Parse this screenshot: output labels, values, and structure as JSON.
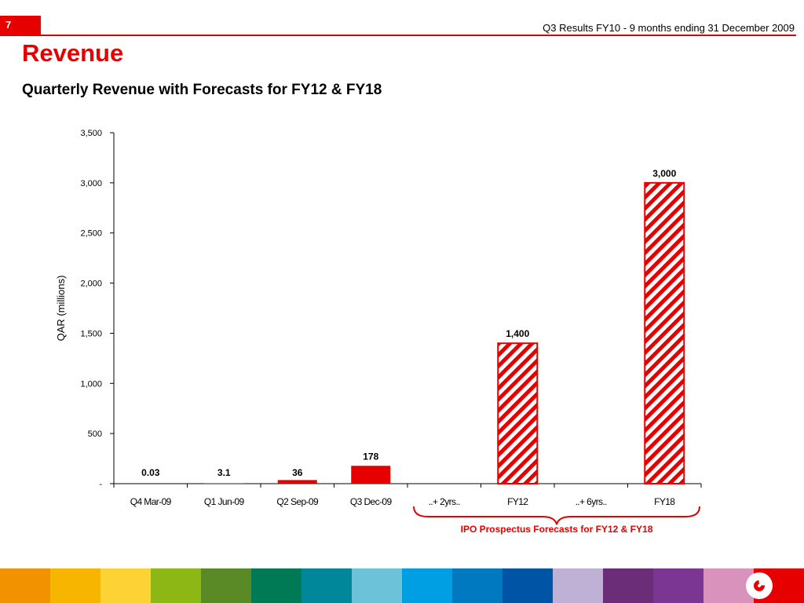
{
  "header": {
    "slide_number": "7",
    "report_title": "Q3 Results FY10 - 9 months ending 31 December 2009"
  },
  "title": "Revenue",
  "subtitle": "Quarterly Revenue with Forecasts for FY12 & FY18",
  "brace_caption": "IPO Prospectus Forecasts for FY12 & FY18",
  "colors": {
    "accent": "#e60000",
    "footer_strips": [
      "#f39200",
      "#f7b500",
      "#fdd235",
      "#8db714",
      "#5a8a26",
      "#007a54",
      "#00879a",
      "#6cc2d8",
      "#009fe3",
      "#0079c1",
      "#0054a5",
      "#bfb1d6",
      "#6c2d78",
      "#7b3592",
      "#d992bc",
      "#e60000"
    ]
  },
  "chart_data": {
    "type": "bar",
    "title": "",
    "xlabel": "",
    "ylabel": "QAR (millions)",
    "ylim": [
      0,
      3500
    ],
    "yticks": [
      "-",
      "500",
      "1,000",
      "1,500",
      "2,000",
      "2,500",
      "3,000",
      "3,500"
    ],
    "ytick_values": [
      0,
      500,
      1000,
      1500,
      2000,
      2500,
      3000,
      3500
    ],
    "categories": [
      "Q4 Mar-09",
      "Q1 Jun-09",
      "Q2 Sep-09",
      "Q3 Dec-09",
      "..+ 2yrs..",
      "FY12",
      "..+ 6yrs..",
      "FY18"
    ],
    "values": [
      0.03,
      3.1,
      36,
      178,
      null,
      1400,
      null,
      3000
    ],
    "data_labels": [
      "0.03",
      "3.1",
      "36",
      "178",
      "",
      "1,400",
      "",
      "3,000"
    ],
    "bar_style": [
      "solid",
      "solid",
      "solid",
      "solid",
      "none",
      "hatched",
      "none",
      "hatched"
    ],
    "grid": false,
    "legend": "none"
  }
}
